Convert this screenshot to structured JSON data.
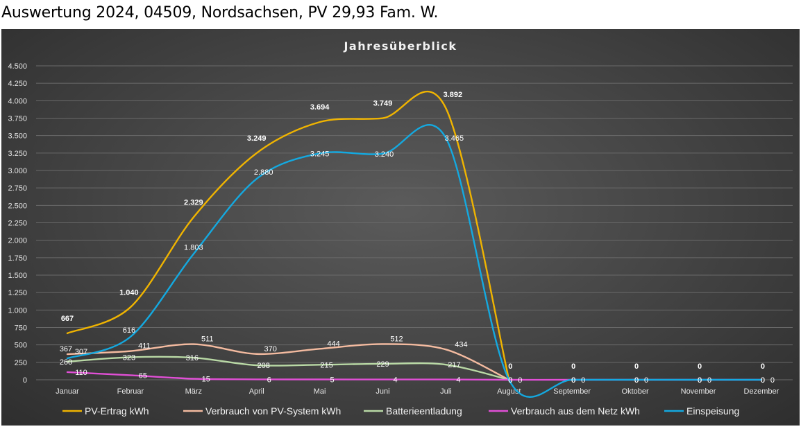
{
  "page": {
    "title": "Auswertung 2024, 04509, Nordsachsen, PV 29,93 Fam. W."
  },
  "chart_data": {
    "type": "line",
    "title": "Jahresüberblick",
    "xlabel": "",
    "ylabel": "",
    "categories": [
      "Januar",
      "Februar",
      "März",
      "April",
      "Mai",
      "Juni",
      "Juli",
      "August",
      "September",
      "Oktober",
      "November",
      "Dezember"
    ],
    "ylim": [
      0,
      4500
    ],
    "yticks": [
      0,
      250,
      500,
      750,
      1000,
      1250,
      1500,
      1750,
      2000,
      2250,
      2500,
      2750,
      3000,
      3250,
      3500,
      3750,
      4000,
      4250,
      4500
    ],
    "ytick_labels": [
      "0",
      "250",
      "500",
      "750",
      "1.000",
      "1.250",
      "1.500",
      "1.750",
      "2.000",
      "2.250",
      "2.500",
      "2.750",
      "3.000",
      "3.250",
      "3.500",
      "3.750",
      "4.000",
      "4.250",
      "4.500"
    ],
    "grid": true,
    "smooth": true,
    "legend_position": "bottom",
    "series": [
      {
        "name": "PV-Ertrag    kWh",
        "color": "#f0b400",
        "bold_labels": true,
        "values": [
          667,
          1040,
          2329,
          3249,
          3694,
          3749,
          3892,
          0,
          null,
          null,
          null,
          null
        ],
        "labels": [
          "667",
          "1.040",
          "2.329",
          "3.249",
          "3.694",
          "3.749",
          "3.892",
          "0",
          "0",
          "0",
          "0",
          "0"
        ]
      },
      {
        "name": "Verbrauch von PV-System kWh",
        "color": "#f4bba0",
        "bold_labels": false,
        "values": [
          367,
          411,
          511,
          370,
          444,
          512,
          434,
          0,
          null,
          null,
          null,
          null
        ],
        "labels": [
          "367",
          "411",
          "511",
          "370",
          "444",
          "512",
          "434",
          "0",
          "0",
          "0",
          "0",
          "0"
        ]
      },
      {
        "name": "Batterieentladung",
        "color": "#b9d9a5",
        "bold_labels": false,
        "values": [
          260,
          323,
          316,
          208,
          215,
          229,
          217,
          0,
          null,
          null,
          null,
          null
        ],
        "labels": [
          "260",
          "323",
          "316",
          "208",
          "215",
          "229",
          "217",
          "0",
          "0",
          "0",
          "0",
          "0"
        ]
      },
      {
        "name": "Verbrauch aus dem Netz kWh",
        "color": "#e14fd6",
        "bold_labels": false,
        "values": [
          110,
          65,
          15,
          6,
          5,
          4,
          4,
          0,
          0,
          0,
          0,
          0
        ],
        "labels": [
          "110",
          "65",
          "15",
          "6",
          "5",
          "4",
          "4",
          "0",
          "0",
          "0",
          "0",
          "0"
        ]
      },
      {
        "name": "Einspeisung",
        "color": "#14a9e0",
        "bold_labels": false,
        "values": [
          307,
          616,
          1803,
          2880,
          3245,
          3240,
          3465,
          0,
          0,
          0,
          0,
          0
        ],
        "labels": [
          "307",
          "616",
          "1.803",
          "2.880",
          "3.245",
          "3.240",
          "3.465",
          "0",
          "0",
          "0",
          "0",
          "0"
        ]
      }
    ]
  }
}
